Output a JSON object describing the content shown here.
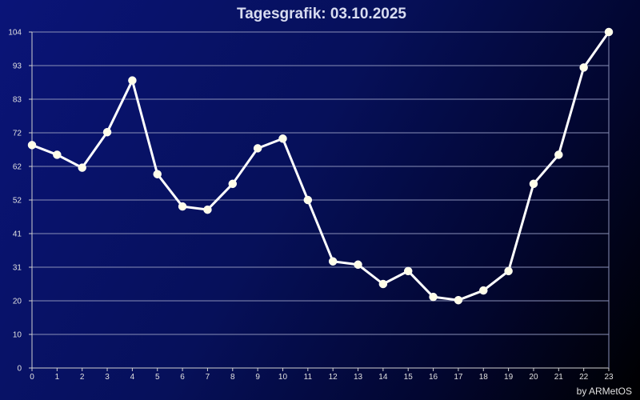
{
  "chart_data": {
    "type": "line",
    "title": "Tagesgrafik: 03.10.2025",
    "credit": "by ARMetOS",
    "xlabel": "",
    "ylabel": "",
    "x": [
      0,
      1,
      2,
      3,
      4,
      5,
      6,
      7,
      8,
      9,
      10,
      11,
      12,
      13,
      14,
      15,
      16,
      17,
      18,
      19,
      20,
      21,
      22,
      23
    ],
    "series": [
      {
        "values": [
          69,
          66,
          62,
          73,
          89,
          60,
          50,
          49,
          57,
          68,
          71,
          52,
          33,
          32,
          26,
          30,
          22,
          21,
          24,
          30,
          57,
          66,
          93,
          104
        ]
      }
    ],
    "xlim": [
      0,
      23
    ],
    "ylim": [
      0,
      104
    ],
    "yticks": [
      "0",
      "10",
      "20",
      "31",
      "41",
      "52",
      "62",
      "72",
      "83",
      "93",
      "104"
    ],
    "xticks": [
      "0",
      "1",
      "2",
      "3",
      "4",
      "5",
      "6",
      "7",
      "8",
      "9",
      "10",
      "11",
      "12",
      "13",
      "14",
      "15",
      "16",
      "17",
      "18",
      "19",
      "20",
      "21",
      "22",
      "23"
    ],
    "grid": true,
    "colors": {
      "line": "#ffffff",
      "marker": "#fffde8",
      "grid": "#8a90b8",
      "axis": "#d0d0d0"
    }
  }
}
